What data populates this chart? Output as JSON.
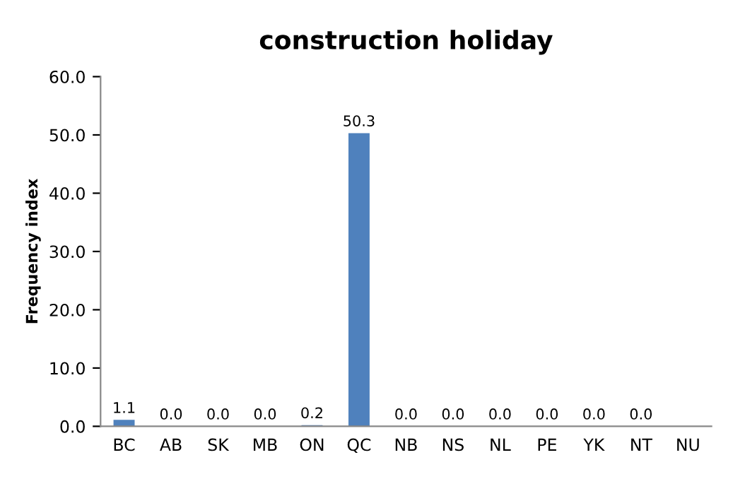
{
  "chart_data": {
    "type": "bar",
    "title": "construction holiday",
    "ylabel": "Frequency index",
    "categories": [
      "BC",
      "AB",
      "SK",
      "MB",
      "ON",
      "QC",
      "NB",
      "NS",
      "NL",
      "PE",
      "YK",
      "NT",
      "NU"
    ],
    "values": [
      1.1,
      0.0,
      0.0,
      0.0,
      0.2,
      50.3,
      0.0,
      0.0,
      0.0,
      0.0,
      0.0,
      0.0,
      null
    ],
    "value_labels": [
      "1.1",
      "0.0",
      "0.0",
      "0.0",
      "0.2",
      "50.3",
      "0.0",
      "0.0",
      "0.0",
      "0.0",
      "0.0",
      "0.0",
      null
    ],
    "color": "#4f81bd",
    "ylim": [
      0,
      60
    ],
    "yticks": [
      {
        "value": 0,
        "label": "0.0"
      },
      {
        "value": 10,
        "label": "10.0"
      },
      {
        "value": 20,
        "label": "20.0"
      },
      {
        "value": 30,
        "label": "30.0"
      },
      {
        "value": 40,
        "label": "40.0"
      },
      {
        "value": 50,
        "label": "50.0"
      },
      {
        "value": 60,
        "label": "60.0"
      }
    ],
    "grid": false,
    "legend": false
  }
}
